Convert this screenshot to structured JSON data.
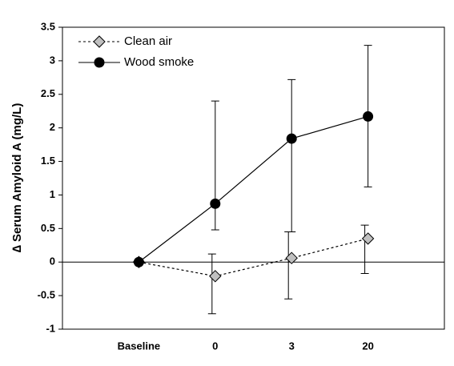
{
  "chart_data": {
    "type": "line",
    "y_label": "∆ Serum Amyloid A (mg/L)",
    "categories": [
      "Baseline",
      "0",
      "3",
      "20"
    ],
    "series": [
      {
        "name": "Clean air",
        "color": "#c0c0c0",
        "line_color": "#000000",
        "marker": "diamond",
        "dash": "3,3",
        "values": [
          0,
          -0.21,
          0.06,
          0.35
        ],
        "lower": [
          null,
          -0.77,
          -0.55,
          -0.17
        ],
        "upper": [
          null,
          0.12,
          0.45,
          0.55
        ]
      },
      {
        "name": "Wood smoke",
        "color": "#000000",
        "line_color": "#000000",
        "marker": "circle",
        "dash": "none",
        "values": [
          0,
          0.87,
          1.84,
          2.17
        ],
        "lower": [
          null,
          0.48,
          0.45,
          1.12
        ],
        "upper": [
          null,
          2.4,
          2.72,
          3.23
        ]
      }
    ],
    "ylim": [
      -1,
      3.5
    ],
    "yticks": [
      3.5,
      3,
      2.5,
      2,
      1.5,
      1,
      0.5,
      0,
      -0.5,
      -1
    ],
    "legend": "upper left"
  }
}
